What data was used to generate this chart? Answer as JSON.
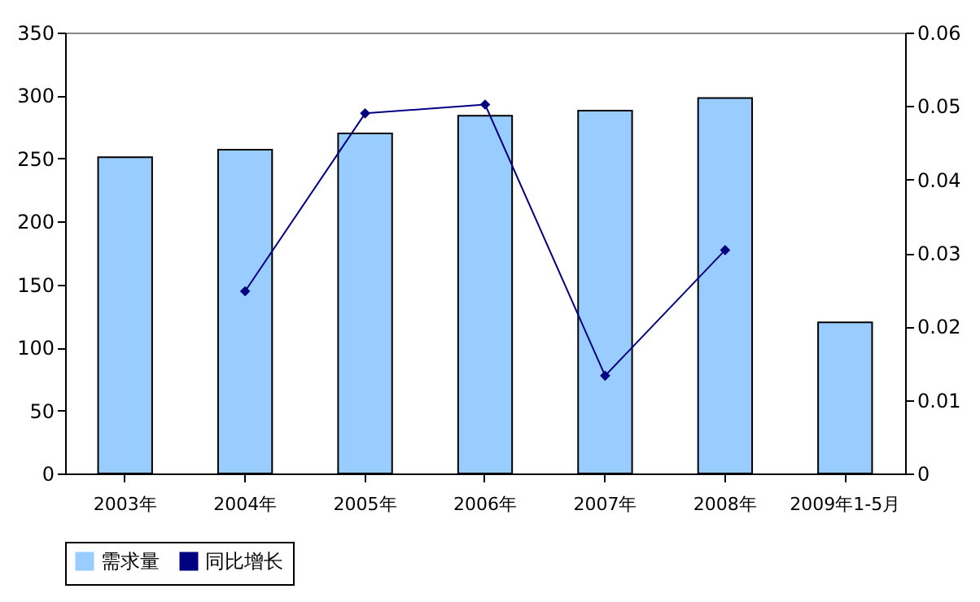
{
  "chart_data": {
    "type": "bar",
    "categories": [
      "2003年",
      "2004年",
      "2005年",
      "2006年",
      "2007年",
      "2008年",
      "2009年1-5月"
    ],
    "series": [
      {
        "name": "需求量",
        "color": "#99ccff",
        "values": [
          251,
          257,
          270,
          284,
          288,
          298,
          120
        ]
      },
      {
        "name": "同比增长",
        "type": "line",
        "axis": "y2",
        "color": "#000080",
        "marker": "diamond",
        "values": [
          null,
          0.0248,
          0.049,
          0.0502,
          0.0133,
          0.0304,
          null
        ]
      }
    ],
    "ylim": [
      0,
      350
    ],
    "yticks": [
      0,
      50,
      100,
      150,
      200,
      250,
      300,
      350
    ],
    "y2lim": [
      0,
      0.06
    ],
    "y2ticks": [
      0,
      0.01,
      0.02,
      0.03,
      0.04,
      0.05,
      0.06
    ],
    "grid": false,
    "legend": "bottom"
  }
}
